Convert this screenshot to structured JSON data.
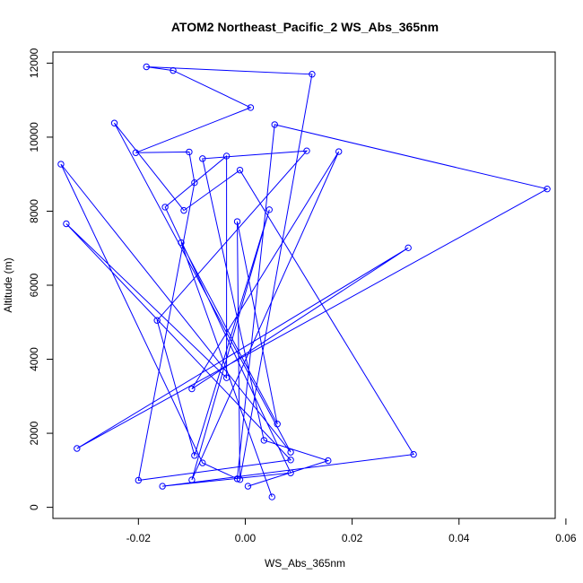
{
  "chart_data": {
    "type": "line",
    "title": "ATOM2 Northeast_Pacific_2 WS_Abs_365nm",
    "xlabel": "WS_Abs_365nm",
    "ylabel": "Altitude (m)",
    "xlim": [
      -0.036,
      0.058
    ],
    "ylim": [
      0,
      12000
    ],
    "x_ticks": [
      -0.02,
      0.0,
      0.02,
      0.04,
      0.06
    ],
    "x_tick_labels": [
      "-0.02",
      "0.00",
      "0.02",
      "0.04",
      "0.06"
    ],
    "y_ticks": [
      0,
      2000,
      4000,
      6000,
      8000,
      10000,
      12000
    ],
    "y_tick_labels": [
      "0",
      "2000",
      "4000",
      "6000",
      "8000",
      "10000",
      "12000"
    ],
    "grid": false,
    "legend": "none",
    "colors": {
      "series": "#0000ff",
      "axes": "#000000",
      "background": "#ffffff"
    },
    "series": [
      {
        "marker": "open-circle",
        "points": [
          {
            "x": 0.005,
            "y": 280
          },
          {
            "x": -0.012,
            "y": 7150
          },
          {
            "x": 0.006,
            "y": 2250
          },
          {
            "x": -0.0015,
            "y": 7720
          },
          {
            "x": -0.001,
            "y": 750
          },
          {
            "x": 0.0125,
            "y": 11700
          },
          {
            "x": -0.0185,
            "y": 11900
          },
          {
            "x": -0.0135,
            "y": 11800
          },
          {
            "x": 0.001,
            "y": 10800
          },
          {
            "x": -0.0205,
            "y": 9580
          },
          {
            "x": -0.0105,
            "y": 9600
          },
          {
            "x": -0.0095,
            "y": 8770
          },
          {
            "x": -0.02,
            "y": 730
          },
          {
            "x": 0.0085,
            "y": 1280
          },
          {
            "x": -0.0335,
            "y": 7660
          },
          {
            "x": -0.0035,
            "y": 3500
          },
          {
            "x": -0.0035,
            "y": 9490
          },
          {
            "x": -0.015,
            "y": 8110
          },
          {
            "x": 0.0085,
            "y": 930
          },
          {
            "x": -0.0155,
            "y": 570
          },
          {
            "x": 0.0315,
            "y": 1430
          },
          {
            "x": -0.001,
            "y": 9110
          },
          {
            "x": -0.0115,
            "y": 8020
          },
          {
            "x": -0.0245,
            "y": 10380
          },
          {
            "x": 0.0085,
            "y": 1490
          },
          {
            "x": -0.0345,
            "y": 9270
          },
          {
            "x": -0.008,
            "y": 1200
          },
          {
            "x": -0.0015,
            "y": 770
          },
          {
            "x": 0.0055,
            "y": 10340
          },
          {
            "x": 0.0565,
            "y": 8600
          },
          {
            "x": -0.0315,
            "y": 1590
          },
          {
            "x": 0.0305,
            "y": 7010
          },
          {
            "x": -0.01,
            "y": 3200
          },
          {
            "x": 0.0175,
            "y": 9610
          },
          {
            "x": -0.01,
            "y": 740
          },
          {
            "x": 0.0045,
            "y": 8040
          },
          {
            "x": -0.0095,
            "y": 1400
          },
          {
            "x": -0.0165,
            "y": 5050
          },
          {
            "x": 0.0115,
            "y": 9630
          },
          {
            "x": -0.008,
            "y": 9420
          },
          {
            "x": 0.0035,
            "y": 1810
          },
          {
            "x": 0.0155,
            "y": 1260
          },
          {
            "x": 0.0005,
            "y": 570
          }
        ]
      }
    ]
  }
}
